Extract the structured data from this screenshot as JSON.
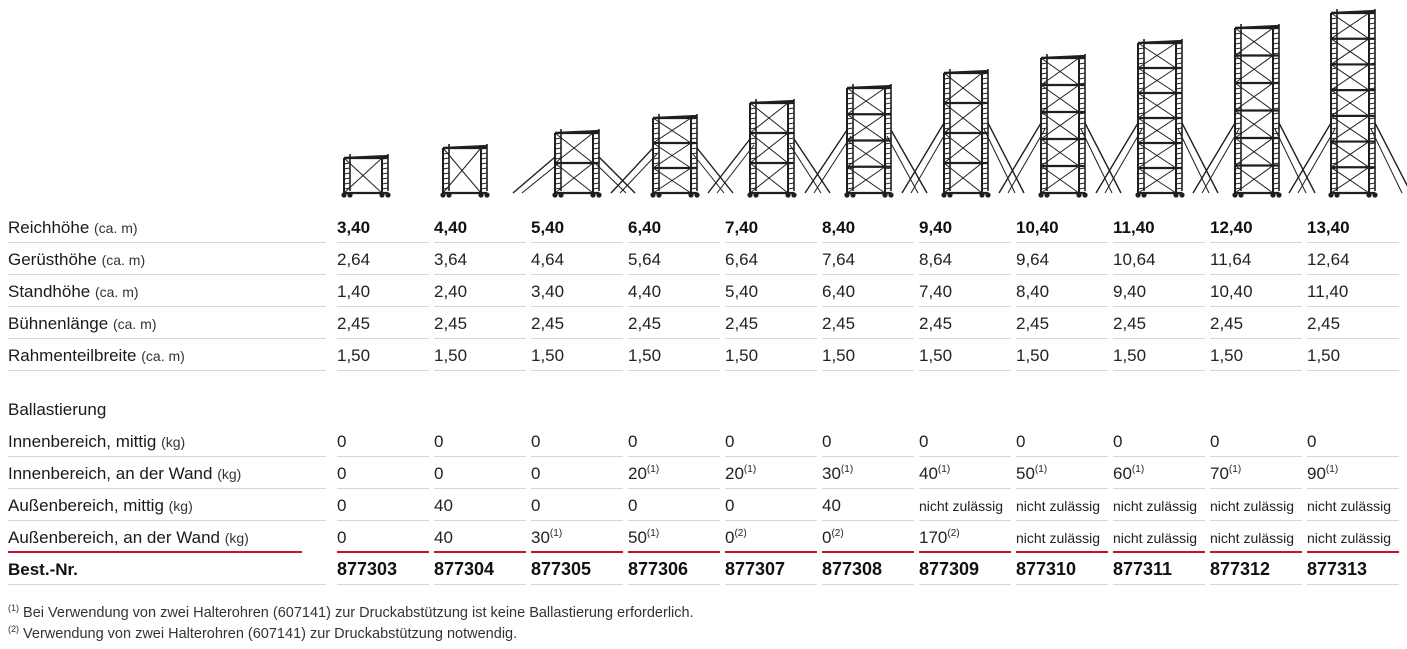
{
  "models": [
    {
      "reichhoehe": "3,40",
      "geruesthoehe": "2,64",
      "standhoehe": "1,40",
      "buehnenlaenge": "2,45",
      "rahmenteilbreite": "1,50",
      "innen_mittig": "0",
      "innen_wand": "0",
      "innen_wand_note": "",
      "aussen_mittig": "0",
      "aussen_wand": "0",
      "aussen_wand_note": "",
      "best_nr": "877303",
      "levels": 1,
      "outriggers": false
    },
    {
      "reichhoehe": "4,40",
      "geruesthoehe": "3,64",
      "standhoehe": "2,40",
      "buehnenlaenge": "2,45",
      "rahmenteilbreite": "1,50",
      "innen_mittig": "0",
      "innen_wand": "0",
      "innen_wand_note": "",
      "aussen_mittig": "40",
      "aussen_wand": "40",
      "aussen_wand_note": "",
      "best_nr": "877304",
      "levels": 1.4,
      "outriggers": false
    },
    {
      "reichhoehe": "5,40",
      "geruesthoehe": "4,64",
      "standhoehe": "3,40",
      "buehnenlaenge": "2,45",
      "rahmenteilbreite": "1,50",
      "innen_mittig": "0",
      "innen_wand": "0",
      "innen_wand_note": "",
      "aussen_mittig": "0",
      "aussen_wand": "30",
      "aussen_wand_note": "(1)",
      "best_nr": "877305",
      "levels": 2,
      "outriggers": true
    },
    {
      "reichhoehe": "6,40",
      "geruesthoehe": "5,64",
      "standhoehe": "4,40",
      "buehnenlaenge": "2,45",
      "rahmenteilbreite": "1,50",
      "innen_mittig": "0",
      "innen_wand": "20",
      "innen_wand_note": "(1)",
      "aussen_mittig": "0",
      "aussen_wand": "50",
      "aussen_wand_note": "(1)",
      "best_nr": "877306",
      "levels": 2.6,
      "outriggers": true
    },
    {
      "reichhoehe": "7,40",
      "geruesthoehe": "6,64",
      "standhoehe": "5,40",
      "buehnenlaenge": "2,45",
      "rahmenteilbreite": "1,50",
      "innen_mittig": "0",
      "innen_wand": "20",
      "innen_wand_note": "(1)",
      "aussen_mittig": "0",
      "aussen_wand": "0",
      "aussen_wand_note": "(2)",
      "best_nr": "877307",
      "levels": 3.2,
      "outriggers": true
    },
    {
      "reichhoehe": "8,40",
      "geruesthoehe": "7,64",
      "standhoehe": "6,40",
      "buehnenlaenge": "2,45",
      "rahmenteilbreite": "1,50",
      "innen_mittig": "0",
      "innen_wand": "30",
      "innen_wand_note": "(1)",
      "aussen_mittig": "40",
      "aussen_wand": "0",
      "aussen_wand_note": "(2)",
      "best_nr": "877308",
      "levels": 3.8,
      "outriggers": true
    },
    {
      "reichhoehe": "9,40",
      "geruesthoehe": "8,64",
      "standhoehe": "7,40",
      "buehnenlaenge": "2,45",
      "rahmenteilbreite": "1,50",
      "innen_mittig": "0",
      "innen_wand": "40",
      "innen_wand_note": "(1)",
      "aussen_mittig": "nicht zulässig",
      "aussen_wand": "170",
      "aussen_wand_note": "(2)",
      "best_nr": "877309",
      "levels": 4.4,
      "outriggers": true
    },
    {
      "reichhoehe": "10,40",
      "geruesthoehe": "9,64",
      "standhoehe": "8,40",
      "buehnenlaenge": "2,45",
      "rahmenteilbreite": "1,50",
      "innen_mittig": "0",
      "innen_wand": "50",
      "innen_wand_note": "(1)",
      "aussen_mittig": "nicht zulässig",
      "aussen_wand": "nicht zulässig",
      "aussen_wand_note": "",
      "best_nr": "877310",
      "levels": 5,
      "outriggers": true
    },
    {
      "reichhoehe": "11,40",
      "geruesthoehe": "10,64",
      "standhoehe": "9,40",
      "buehnenlaenge": "2,45",
      "rahmenteilbreite": "1,50",
      "innen_mittig": "0",
      "innen_wand": "60",
      "innen_wand_note": "(1)",
      "aussen_mittig": "nicht zulässig",
      "aussen_wand": "nicht zulässig",
      "aussen_wand_note": "",
      "best_nr": "877311",
      "levels": 5.6,
      "outriggers": true
    },
    {
      "reichhoehe": "12,40",
      "geruesthoehe": "11,64",
      "standhoehe": "10,40",
      "buehnenlaenge": "2,45",
      "rahmenteilbreite": "1,50",
      "innen_mittig": "0",
      "innen_wand": "70",
      "innen_wand_note": "(1)",
      "aussen_mittig": "nicht zulässig",
      "aussen_wand": "nicht zulässig",
      "aussen_wand_note": "",
      "best_nr": "877312",
      "levels": 6.2,
      "outriggers": true
    },
    {
      "reichhoehe": "13,40",
      "geruesthoehe": "12,64",
      "standhoehe": "11,40",
      "buehnenlaenge": "2,45",
      "rahmenteilbreite": "1,50",
      "innen_mittig": "0",
      "innen_wand": "90",
      "innen_wand_note": "(1)",
      "aussen_mittig": "nicht zulässig",
      "aussen_wand": "nicht zulässig",
      "aussen_wand_note": "",
      "best_nr": "877313",
      "levels": 6.8,
      "outriggers": true
    }
  ],
  "labels": {
    "reichhoehe": "Reichhöhe",
    "reichhoehe_unit": "(ca. m)",
    "geruesthoehe": "Gerüsthöhe",
    "geruesthoehe_unit": "(ca. m)",
    "standhoehe": "Standhöhe",
    "standhoehe_unit": "(ca. m)",
    "buehnenlaenge": "Bühnenlänge",
    "buehnenlaenge_unit": "(ca. m)",
    "rahmenteilbreite": "Rahmenteilbreite",
    "rahmenteilbreite_unit": "(ca. m)",
    "ballastierung": "Ballastierung",
    "innen_mittig": "Innenbereich, mittig",
    "innen_mittig_unit": "(kg)",
    "innen_wand": "Innenbereich, an der Wand",
    "innen_wand_unit": "(kg)",
    "aussen_mittig": "Außenbereich, mittig",
    "aussen_mittig_unit": "(kg)",
    "aussen_wand": "Außenbereich, an der Wand",
    "aussen_wand_unit": "(kg)",
    "best_nr": "Best.-Nr."
  },
  "footnotes": [
    {
      "mark": "(1)",
      "text": "Bei Verwendung von zwei Halterohren (607141) zur Druckabstützung ist keine Ballastierung erforderlich."
    },
    {
      "mark": "(2)",
      "text": "Verwendung von zwei Halterohren (607141) zur Druckabstützung notwendig."
    }
  ],
  "colors": {
    "accent_line": "#c8102e",
    "scaffold": "#1f1f1f"
  }
}
